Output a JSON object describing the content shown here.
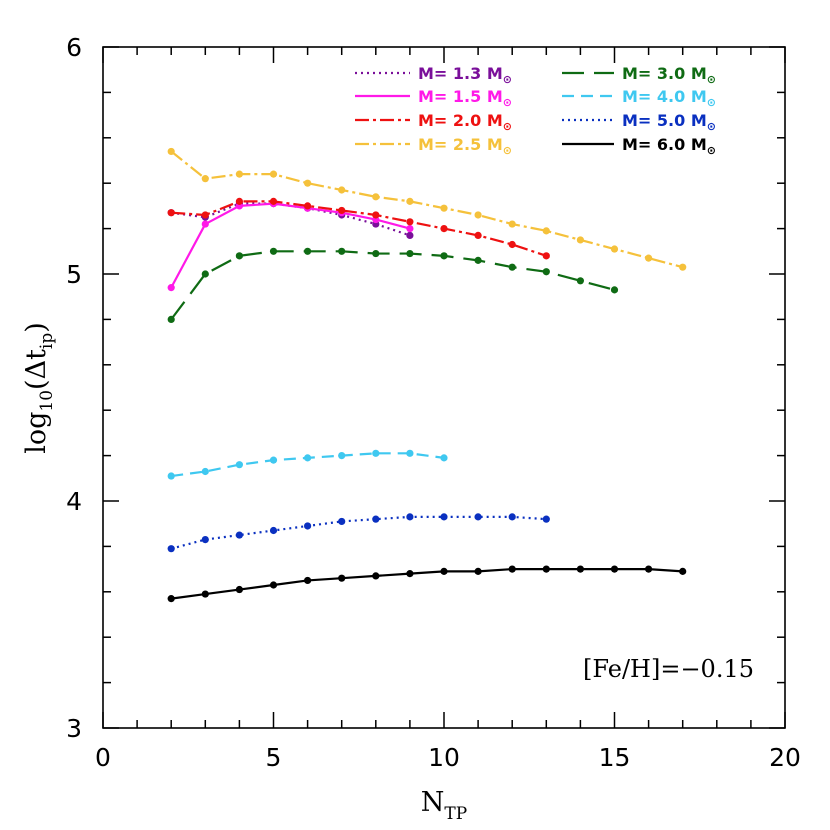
{
  "chart_data": {
    "type": "line",
    "xlabel": {
      "main": "N",
      "sub": "TP"
    },
    "ylabel": {
      "pre": "log",
      "pre_sub": "10",
      "paren_open": "(Δt",
      "sub": "ip",
      "paren_close": ")"
    },
    "xlim": [
      0,
      20
    ],
    "ylim": [
      3,
      6
    ],
    "x_ticks": [
      "0",
      "5",
      "10",
      "15",
      "20"
    ],
    "y_ticks": [
      "3",
      "4",
      "5",
      "6"
    ],
    "grid": false,
    "legend_position": "top-right",
    "annotation": "[Fe/H]=−0.15",
    "series": [
      {
        "name": "M= 1.3 M⊙",
        "label": "M=  1.3 M",
        "color": "#7a0f9a",
        "dash": "2,4",
        "x": [
          2,
          3,
          4,
          5,
          6,
          7,
          8,
          9
        ],
        "y": [
          5.27,
          5.25,
          5.31,
          5.31,
          5.29,
          5.26,
          5.22,
          5.17
        ]
      },
      {
        "name": "M= 1.5 M⊙",
        "label": "M=  1.5 M",
        "color": "#ff19e8",
        "dash": "",
        "x": [
          2,
          3,
          4,
          5,
          6,
          7,
          8,
          9
        ],
        "y": [
          4.94,
          5.22,
          5.3,
          5.31,
          5.29,
          5.27,
          5.24,
          5.2
        ]
      },
      {
        "name": "M= 2.0 M⊙",
        "label": "M=  2.0 M",
        "color": "#ee1111",
        "dash": "14,4,3,4",
        "x": [
          2,
          3,
          4,
          5,
          6,
          7,
          8,
          9,
          10,
          11,
          12,
          13
        ],
        "y": [
          5.27,
          5.26,
          5.32,
          5.32,
          5.3,
          5.28,
          5.26,
          5.23,
          5.2,
          5.17,
          5.13,
          5.08
        ]
      },
      {
        "name": "M= 2.5 M⊙",
        "label": "M=  2.5 M",
        "color": "#f5c13b",
        "dash": "14,4,3,4",
        "x": [
          2,
          3,
          4,
          5,
          6,
          7,
          8,
          9,
          10,
          11,
          12,
          13,
          14,
          15,
          16,
          17
        ],
        "y": [
          5.54,
          5.42,
          5.44,
          5.44,
          5.4,
          5.37,
          5.34,
          5.32,
          5.29,
          5.26,
          5.22,
          5.19,
          5.15,
          5.11,
          5.07,
          5.03
        ]
      },
      {
        "name": "M= 3.0 M⊙",
        "label": "M=  3.0 M",
        "color": "#0f6b14",
        "dash": "22,10",
        "x": [
          2,
          3,
          4,
          5,
          6,
          7,
          8,
          9,
          10,
          11,
          12,
          13,
          14,
          15
        ],
        "y": [
          4.8,
          5.0,
          5.08,
          5.1,
          5.1,
          5.1,
          5.09,
          5.09,
          5.08,
          5.06,
          5.03,
          5.01,
          4.97,
          4.93
        ]
      },
      {
        "name": "M= 4.0 M⊙",
        "label": "M=  4.0 M",
        "color": "#3fc8f0",
        "dash": "12,7",
        "x": [
          2,
          3,
          4,
          5,
          6,
          7,
          8,
          9,
          10
        ],
        "y": [
          4.11,
          4.13,
          4.16,
          4.18,
          4.19,
          4.2,
          4.21,
          4.21,
          4.19
        ]
      },
      {
        "name": "M= 5.0 M⊙",
        "label": "M=  5.0 M",
        "color": "#0a30c0",
        "dash": "2,4",
        "x": [
          2,
          3,
          4,
          5,
          6,
          7,
          8,
          9,
          10,
          11,
          12,
          13
        ],
        "y": [
          3.79,
          3.83,
          3.85,
          3.87,
          3.89,
          3.91,
          3.92,
          3.93,
          3.93,
          3.93,
          3.93,
          3.92
        ]
      },
      {
        "name": "M= 6.0 M⊙",
        "label": "M=  6.0 M",
        "color": "#000000",
        "dash": "",
        "x": [
          2,
          3,
          4,
          5,
          6,
          7,
          8,
          9,
          10,
          11,
          12,
          13,
          14,
          15,
          16,
          17
        ],
        "y": [
          3.57,
          3.59,
          3.61,
          3.63,
          3.65,
          3.66,
          3.67,
          3.68,
          3.69,
          3.69,
          3.7,
          3.7,
          3.7,
          3.7,
          3.7,
          3.69
        ]
      }
    ]
  },
  "legend": {
    "sun_sub": "⊙"
  }
}
